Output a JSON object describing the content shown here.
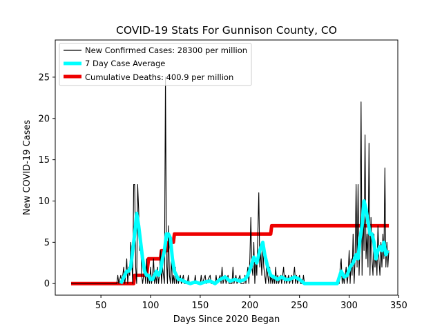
{
  "chart_data": {
    "type": "line",
    "title": "COVID-19 Stats For Gunnison County, CO",
    "xlabel": "Days Since 2020 Began",
    "ylabel": "New COVID-19 Cases",
    "xlim": [
      4,
      349
    ],
    "ylim": [
      -1.4,
      29.5
    ],
    "xticks": [
      50,
      100,
      150,
      200,
      250,
      300,
      350
    ],
    "yticks": [
      0,
      5,
      10,
      15,
      20,
      25
    ],
    "grid": false,
    "legend_position": "top-left",
    "series": [
      {
        "name": "New Confirmed Cases: 28300 per million",
        "color": "#000000",
        "points": [
          [
            20,
            0
          ],
          [
            66,
            0
          ],
          [
            67,
            1
          ],
          [
            68,
            0
          ],
          [
            70,
            1
          ],
          [
            71,
            0
          ],
          [
            73,
            2
          ],
          [
            74,
            0
          ],
          [
            75,
            1
          ],
          [
            76,
            3
          ],
          [
            77,
            0
          ],
          [
            78,
            2
          ],
          [
            79,
            1
          ],
          [
            80,
            5
          ],
          [
            81,
            3
          ],
          [
            82,
            0
          ],
          [
            83,
            12
          ],
          [
            84,
            12
          ],
          [
            85,
            2
          ],
          [
            86,
            0
          ],
          [
            87,
            12
          ],
          [
            88,
            9
          ],
          [
            89,
            4
          ],
          [
            90,
            6
          ],
          [
            91,
            1
          ],
          [
            92,
            0
          ],
          [
            93,
            1
          ],
          [
            94,
            2
          ],
          [
            95,
            0
          ],
          [
            96,
            3
          ],
          [
            97,
            0
          ],
          [
            98,
            1
          ],
          [
            99,
            0
          ],
          [
            100,
            2
          ],
          [
            101,
            0
          ],
          [
            102,
            1
          ],
          [
            103,
            3
          ],
          [
            104,
            0
          ],
          [
            105,
            1
          ],
          [
            106,
            0
          ],
          [
            107,
            2
          ],
          [
            108,
            0
          ],
          [
            109,
            1
          ],
          [
            110,
            4
          ],
          [
            111,
            0
          ],
          [
            112,
            2
          ],
          [
            113,
            1
          ],
          [
            114,
            0
          ],
          [
            115,
            25
          ],
          [
            116,
            3
          ],
          [
            117,
            0
          ],
          [
            118,
            7
          ],
          [
            119,
            1
          ],
          [
            120,
            0
          ],
          [
            121,
            3
          ],
          [
            122,
            0
          ],
          [
            123,
            1
          ],
          [
            124,
            0
          ],
          [
            125,
            2
          ],
          [
            126,
            0
          ],
          [
            127,
            1
          ],
          [
            128,
            0
          ],
          [
            130,
            1
          ],
          [
            131,
            0
          ],
          [
            133,
            1
          ],
          [
            134,
            0
          ],
          [
            137,
            0
          ],
          [
            138,
            1
          ],
          [
            139,
            0
          ],
          [
            144,
            0
          ],
          [
            145,
            1
          ],
          [
            146,
            0
          ],
          [
            150,
            0
          ],
          [
            151,
            1
          ],
          [
            152,
            0
          ],
          [
            155,
            1
          ],
          [
            156,
            0
          ],
          [
            160,
            1
          ],
          [
            161,
            0
          ],
          [
            165,
            0
          ],
          [
            166,
            1
          ],
          [
            167,
            0
          ],
          [
            170,
            1
          ],
          [
            171,
            0
          ],
          [
            172,
            2
          ],
          [
            173,
            0
          ],
          [
            175,
            1
          ],
          [
            176,
            0
          ],
          [
            178,
            1
          ],
          [
            179,
            0
          ],
          [
            182,
            0
          ],
          [
            183,
            2
          ],
          [
            184,
            0
          ],
          [
            186,
            1
          ],
          [
            187,
            0
          ],
          [
            190,
            1
          ],
          [
            191,
            0
          ],
          [
            194,
            0
          ],
          [
            195,
            1
          ],
          [
            196,
            0
          ],
          [
            198,
            2
          ],
          [
            199,
            0
          ],
          [
            200,
            3
          ],
          [
            201,
            8
          ],
          [
            202,
            2
          ],
          [
            203,
            1
          ],
          [
            204,
            5
          ],
          [
            205,
            0
          ],
          [
            206,
            3
          ],
          [
            207,
            1
          ],
          [
            208,
            6
          ],
          [
            209,
            11
          ],
          [
            210,
            2
          ],
          [
            211,
            4
          ],
          [
            212,
            1
          ],
          [
            213,
            5
          ],
          [
            214,
            2
          ],
          [
            215,
            1
          ],
          [
            216,
            0
          ],
          [
            217,
            3
          ],
          [
            218,
            1
          ],
          [
            219,
            0
          ],
          [
            220,
            2
          ],
          [
            221,
            0
          ],
          [
            222,
            1
          ],
          [
            223,
            0
          ],
          [
            224,
            1
          ],
          [
            225,
            0
          ],
          [
            226,
            2
          ],
          [
            227,
            0
          ],
          [
            228,
            1
          ],
          [
            229,
            0
          ],
          [
            231,
            1
          ],
          [
            232,
            0
          ],
          [
            234,
            2
          ],
          [
            235,
            0
          ],
          [
            236,
            1
          ],
          [
            237,
            0
          ],
          [
            239,
            1
          ],
          [
            240,
            0
          ],
          [
            242,
            1
          ],
          [
            243,
            0
          ],
          [
            245,
            2
          ],
          [
            246,
            0
          ],
          [
            247,
            1
          ],
          [
            248,
            0
          ],
          [
            250,
            1
          ],
          [
            251,
            0
          ],
          [
            253,
            0
          ],
          [
            254,
            1
          ],
          [
            255,
            0
          ],
          [
            290,
            0
          ],
          [
            291,
            2
          ],
          [
            292,
            3
          ],
          [
            293,
            0
          ],
          [
            294,
            1
          ],
          [
            295,
            0
          ],
          [
            297,
            2
          ],
          [
            298,
            0
          ],
          [
            299,
            1
          ],
          [
            300,
            4
          ],
          [
            301,
            0
          ],
          [
            302,
            3
          ],
          [
            303,
            1
          ],
          [
            304,
            6
          ],
          [
            305,
            0
          ],
          [
            306,
            3
          ],
          [
            307,
            12
          ],
          [
            308,
            2
          ],
          [
            309,
            12
          ],
          [
            310,
            1
          ],
          [
            311,
            5
          ],
          [
            312,
            22
          ],
          [
            313,
            1
          ],
          [
            314,
            9
          ],
          [
            315,
            4
          ],
          [
            316,
            18
          ],
          [
            317,
            3
          ],
          [
            318,
            6
          ],
          [
            319,
            2
          ],
          [
            320,
            17
          ],
          [
            321,
            1
          ],
          [
            322,
            8
          ],
          [
            323,
            3
          ],
          [
            324,
            1
          ],
          [
            325,
            6
          ],
          [
            326,
            2
          ],
          [
            327,
            4
          ],
          [
            328,
            1
          ],
          [
            329,
            7
          ],
          [
            330,
            3
          ],
          [
            331,
            1
          ],
          [
            332,
            5
          ],
          [
            333,
            2
          ],
          [
            334,
            6
          ],
          [
            335,
            3
          ],
          [
            336,
            14
          ],
          [
            337,
            2
          ],
          [
            338,
            5
          ],
          [
            339,
            2
          ],
          [
            340,
            4
          ]
        ]
      },
      {
        "name": "7 Day Case Average",
        "color": "#00ffff",
        "points": [
          [
            70,
            0
          ],
          [
            72,
            0.5
          ],
          [
            74,
            1
          ],
          [
            76,
            1.5
          ],
          [
            78,
            1.5
          ],
          [
            80,
            2
          ],
          [
            82,
            4
          ],
          [
            84,
            6
          ],
          [
            86,
            8.5
          ],
          [
            88,
            7
          ],
          [
            90,
            5
          ],
          [
            92,
            3
          ],
          [
            94,
            1.5
          ],
          [
            96,
            1
          ],
          [
            98,
            1
          ],
          [
            100,
            0.5
          ],
          [
            102,
            0.5
          ],
          [
            104,
            1
          ],
          [
            106,
            1.5
          ],
          [
            108,
            1
          ],
          [
            110,
            1.5
          ],
          [
            112,
            3
          ],
          [
            114,
            4
          ],
          [
            116,
            6
          ],
          [
            118,
            6
          ],
          [
            120,
            5.5
          ],
          [
            122,
            3
          ],
          [
            124,
            1.5
          ],
          [
            126,
            1
          ],
          [
            128,
            0.5
          ],
          [
            130,
            0.5
          ],
          [
            135,
            0.2
          ],
          [
            140,
            0
          ],
          [
            145,
            0.2
          ],
          [
            150,
            0
          ],
          [
            155,
            0.2
          ],
          [
            160,
            0.3
          ],
          [
            165,
            0
          ],
          [
            170,
            0.5
          ],
          [
            175,
            0.8
          ],
          [
            180,
            0.3
          ],
          [
            185,
            0.5
          ],
          [
            190,
            0.3
          ],
          [
            195,
            0.5
          ],
          [
            198,
            1
          ],
          [
            201,
            2
          ],
          [
            204,
            3.2
          ],
          [
            207,
            2.5
          ],
          [
            210,
            4
          ],
          [
            213,
            5
          ],
          [
            215,
            3.5
          ],
          [
            218,
            2
          ],
          [
            221,
            1
          ],
          [
            224,
            0.8
          ],
          [
            228,
            0.5
          ],
          [
            232,
            0.8
          ],
          [
            236,
            0.5
          ],
          [
            240,
            0.5
          ],
          [
            245,
            0.8
          ],
          [
            250,
            0.5
          ],
          [
            255,
            0
          ],
          [
            260,
            0
          ],
          [
            270,
            0
          ],
          [
            280,
            0
          ],
          [
            288,
            0
          ],
          [
            292,
            1.5
          ],
          [
            295,
            0.8
          ],
          [
            298,
            1
          ],
          [
            301,
            2
          ],
          [
            304,
            2.5
          ],
          [
            307,
            3.5
          ],
          [
            309,
            3
          ],
          [
            311,
            5.5
          ],
          [
            313,
            7
          ],
          [
            315,
            10
          ],
          [
            317,
            9
          ],
          [
            319,
            7.5
          ],
          [
            321,
            6
          ],
          [
            323,
            6
          ],
          [
            325,
            5
          ],
          [
            327,
            3
          ],
          [
            329,
            4
          ],
          [
            331,
            4.5
          ],
          [
            333,
            4
          ],
          [
            335,
            5
          ],
          [
            337,
            3.5
          ],
          [
            339,
            4
          ]
        ]
      },
      {
        "name": "Cumulative Deaths: 400.9 per million",
        "color": "#ee0000",
        "points": [
          [
            20,
            0
          ],
          [
            83,
            0
          ],
          [
            84,
            1
          ],
          [
            96,
            1
          ],
          [
            97,
            2
          ],
          [
            98,
            3
          ],
          [
            99,
            3
          ],
          [
            110,
            3
          ],
          [
            111,
            4
          ],
          [
            117,
            4
          ],
          [
            118,
            5
          ],
          [
            123,
            5
          ],
          [
            124,
            6
          ],
          [
            221,
            6
          ],
          [
            222,
            7
          ],
          [
            340,
            7
          ]
        ]
      }
    ]
  }
}
